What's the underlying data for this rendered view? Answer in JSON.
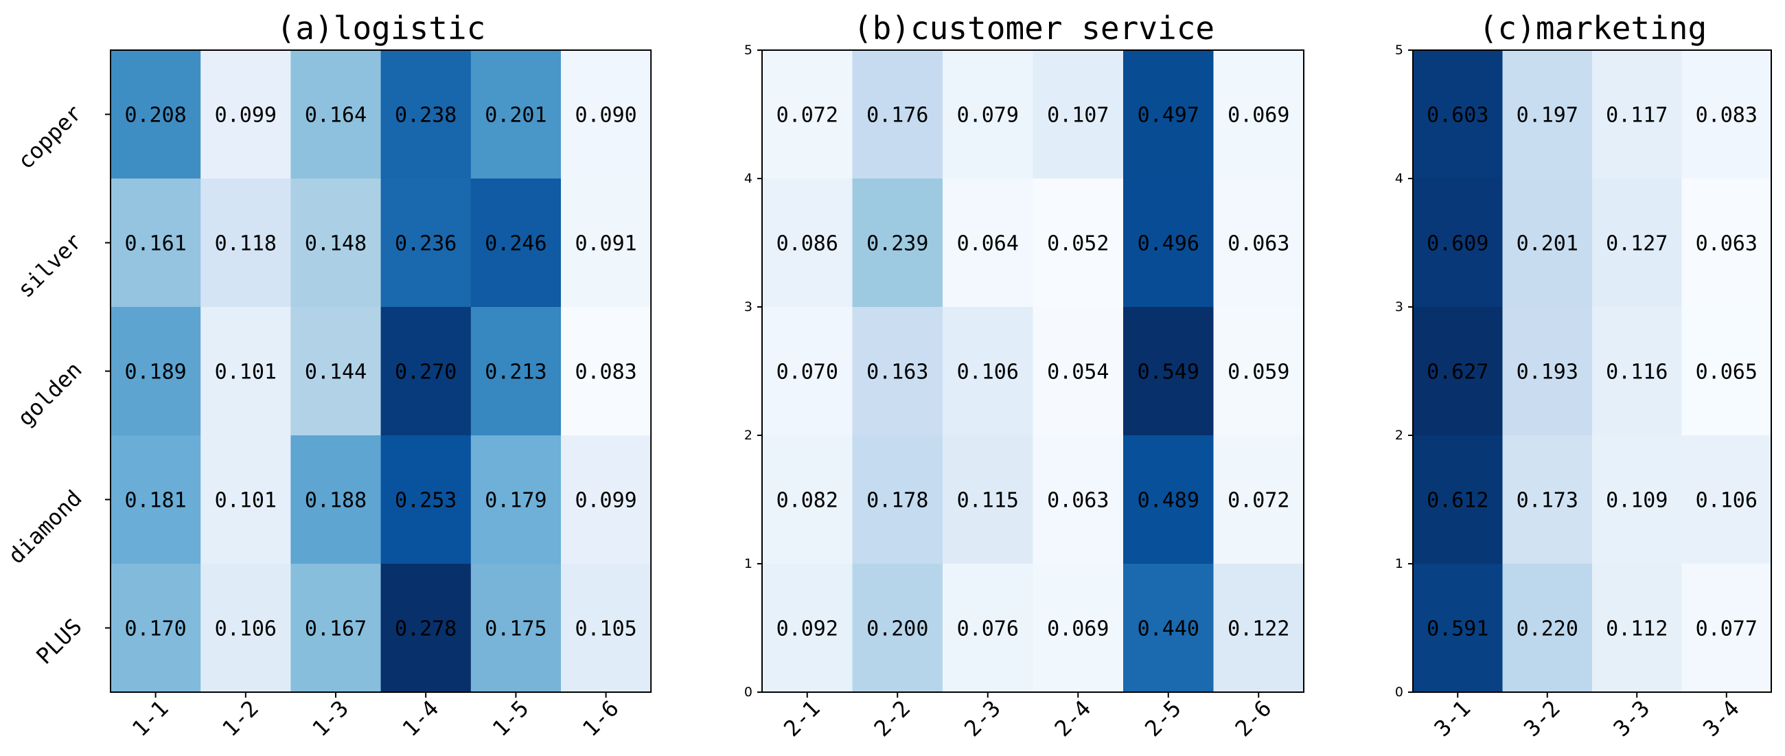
{
  "chart_data": [
    {
      "type": "heatmap",
      "title": "(a)logistic",
      "x_categories": [
        "1-1",
        "1-2",
        "1-3",
        "1-4",
        "1-5",
        "1-6"
      ],
      "y_categories": [
        "copper",
        "silver",
        "golden",
        "diamond",
        "PLUS"
      ],
      "values": [
        [
          0.208,
          0.099,
          0.164,
          0.238,
          0.201,
          0.09
        ],
        [
          0.161,
          0.118,
          0.148,
          0.236,
          0.246,
          0.091
        ],
        [
          0.189,
          0.101,
          0.144,
          0.27,
          0.213,
          0.083
        ],
        [
          0.181,
          0.101,
          0.188,
          0.253,
          0.179,
          0.099
        ],
        [
          0.17,
          0.106,
          0.167,
          0.278,
          0.175,
          0.105
        ]
      ],
      "colormap": "Blues",
      "yticks_numeric": []
    },
    {
      "type": "heatmap",
      "title": "(b)customer service",
      "x_categories": [
        "2-1",
        "2-2",
        "2-3",
        "2-4",
        "2-5",
        "2-6"
      ],
      "y_categories": [],
      "values": [
        [
          0.072,
          0.176,
          0.079,
          0.107,
          0.497,
          0.069
        ],
        [
          0.086,
          0.239,
          0.064,
          0.052,
          0.496,
          0.063
        ],
        [
          0.07,
          0.163,
          0.106,
          0.054,
          0.549,
          0.059
        ],
        [
          0.082,
          0.178,
          0.115,
          0.063,
          0.489,
          0.072
        ],
        [
          0.092,
          0.2,
          0.076,
          0.069,
          0.44,
          0.122
        ]
      ],
      "colormap": "Blues",
      "ylim": [
        0,
        5
      ],
      "yticks_numeric": [
        "5",
        "4",
        "3",
        "2",
        "1",
        "0"
      ]
    },
    {
      "type": "heatmap",
      "title": "(c)marketing",
      "x_categories": [
        "3-1",
        "3-2",
        "3-3",
        "3-4"
      ],
      "y_categories": [],
      "values": [
        [
          0.603,
          0.197,
          0.117,
          0.083
        ],
        [
          0.609,
          0.201,
          0.127,
          0.063
        ],
        [
          0.627,
          0.193,
          0.116,
          0.065
        ],
        [
          0.612,
          0.173,
          0.109,
          0.106
        ],
        [
          0.591,
          0.22,
          0.112,
          0.077
        ]
      ],
      "colormap": "Blues",
      "ylim": [
        0,
        5
      ],
      "yticks_numeric": [
        "5",
        "4",
        "3",
        "2",
        "1",
        "0"
      ]
    }
  ],
  "colors": {
    "cmap_stops": [
      "#f7fbff",
      "#deebf7",
      "#c6dbef",
      "#9ecae1",
      "#6baed6",
      "#4292c6",
      "#2171b5",
      "#08519c",
      "#08306b"
    ],
    "axis": "#000000"
  }
}
